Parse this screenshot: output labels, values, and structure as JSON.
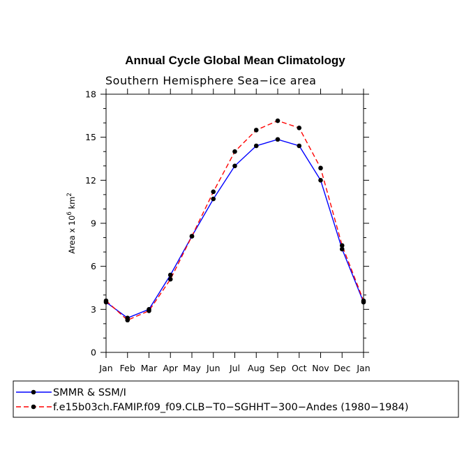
{
  "chart_data": {
    "type": "line",
    "title": "Annual Cycle Global Mean Climatology",
    "subtitle": "Southern Hemisphere Sea−ice area",
    "ylabel_main": "Area x 10",
    "ylabel_sup": "6",
    "ylabel_unit": " km",
    "ylabel_unit_sup": "2",
    "categories": [
      "Jan",
      "Feb",
      "Mar",
      "Apr",
      "May",
      "Jun",
      "Jul",
      "Aug",
      "Sep",
      "Oct",
      "Nov",
      "Dec",
      "Jan"
    ],
    "ylim": [
      0,
      18
    ],
    "yticks": [
      0,
      3,
      6,
      9,
      12,
      15,
      18
    ],
    "series": [
      {
        "name": "SMMR & SSM/I",
        "color": "#0000ff",
        "dash": "solid",
        "values": [
          3.5,
          2.4,
          3.0,
          5.4,
          8.1,
          10.7,
          13.0,
          14.4,
          14.85,
          14.4,
          12.0,
          7.2,
          3.5
        ]
      },
      {
        "name": "f.e15b03ch.FAMIP.f09_f09.CLB−T0−SGHHT−300−Andes (1980−1984)",
        "color": "#ff0000",
        "dash": "dashed",
        "values": [
          3.6,
          2.25,
          2.9,
          5.1,
          8.1,
          11.2,
          14.0,
          15.5,
          16.15,
          15.65,
          12.85,
          7.45,
          3.6
        ]
      }
    ]
  }
}
